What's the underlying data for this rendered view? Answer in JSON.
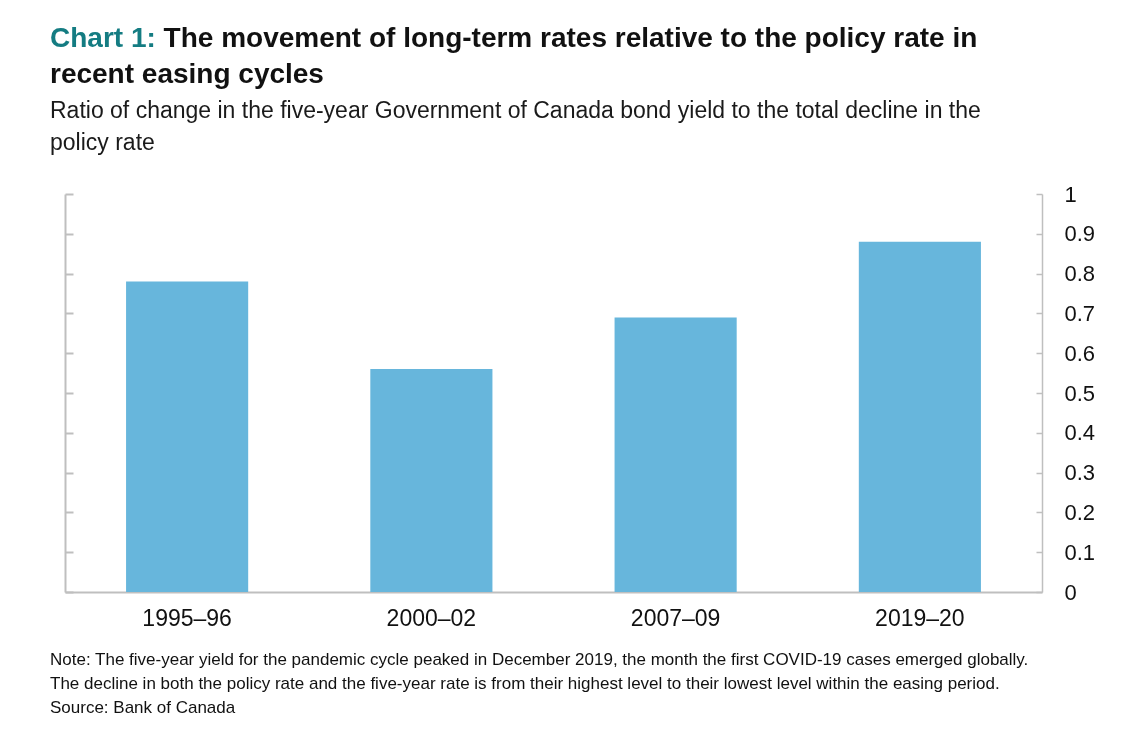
{
  "chart_data": {
    "type": "bar",
    "title": "Chart 1: The movement of long-term rates relative to the policy rate in recent easing cycles",
    "subtitle": "Ratio of change in the five-year Government of Canada bond yield to the total decline in the policy rate",
    "categories": [
      "1995–96",
      "2000–02",
      "2007–09",
      "2019–20"
    ],
    "values": [
      0.78,
      0.56,
      0.69,
      0.88
    ],
    "color": "#67b6dc",
    "ylim": [
      0,
      1
    ],
    "yticks": [
      0,
      0.1,
      0.2,
      0.3,
      0.4,
      0.5,
      0.6,
      0.7,
      0.8,
      0.9,
      1
    ],
    "grid": false,
    "annotations": [
      "Note: The five-year yield for the pandemic cycle peaked in December 2019, the month the first COVID-19 cases emerged globally.",
      "The decline in both the policy rate and the five-year rate is from their highest level to their lowest level within the easing period.",
      "Source: Bank of Canada"
    ]
  }
}
